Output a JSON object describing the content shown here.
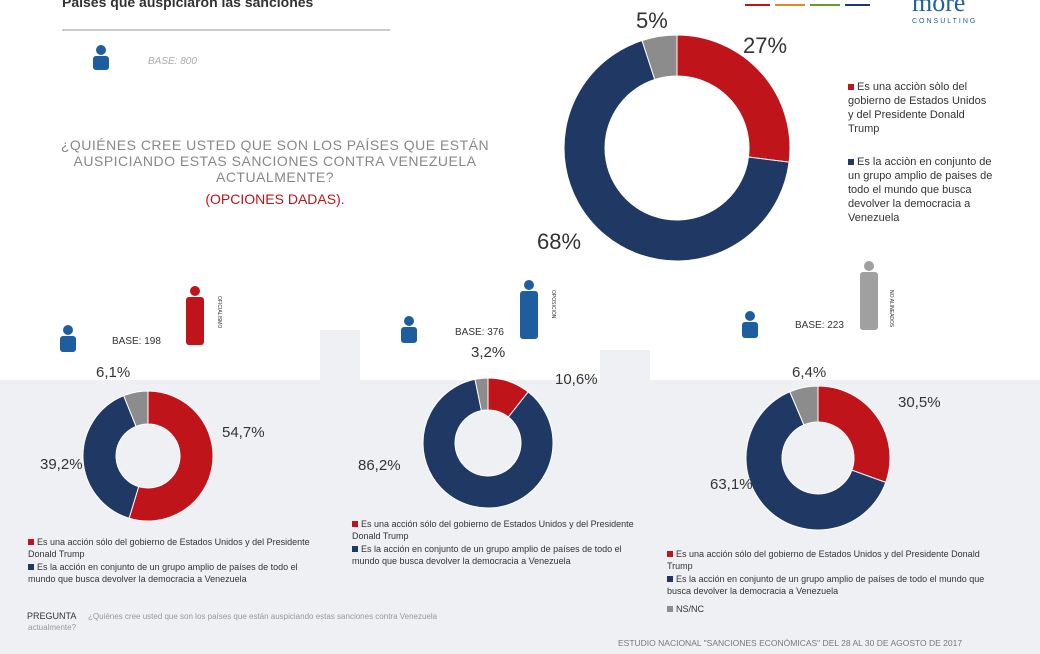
{
  "title": "Países que auspiciaron las sanciones",
  "logo": {
    "name": "more",
    "tagline": "CONSULTING"
  },
  "base": "BASE: 800",
  "question": "¿QUIÉNES CREE USTED QUE SON LOS PAÍSES QUE ESTÁN AUSPICIANDO ESTAS SANCIONES CONTRA VENEZUELA ACTUALMENTE?",
  "options_note": "(OPCIONES DADAS).",
  "footer_question_label": "PREGUNTA",
  "footer_question": "¿Quiénes cree usted que son los países que están auspiciando estas sanciones contra Venezuela actualmente?",
  "source": "ESTUDIO NACIONAL \"SANCIONES ECONÓMICAS\" DEL 28 AL 30 DE AGOSTO DE 2017",
  "chart_data": [
    {
      "type": "pie",
      "categories": [
        "Es una acciòn sòlo del gobierno de Estados Unidos y del Presidente Donald Trump",
        "Es la acciòn en conjunto de un grupo amplio de paises de todo el mundo que busca devolver la democracia a Venezuela",
        null
      ],
      "values": [
        27,
        68,
        5
      ],
      "value_labels": [
        "27%",
        "68%",
        "5%"
      ],
      "colors": [
        "#c0141b",
        "#1f3864",
        "#8c8c8c"
      ]
    },
    {
      "type": "pie",
      "group": "OFICIALISMO",
      "base": "BASE: 198",
      "categories": [
        "Es una acción sólo del gobierno de Estados Unidos y del Presidente Donald Trump",
        "Es la acción en conjunto de un grupo amplio de países de todo el mundo que busca devolver la democracia a Venezuela",
        null
      ],
      "values": [
        54.7,
        39.2,
        6.1
      ],
      "value_labels": [
        "54,7%",
        "39,2%",
        "6,1%"
      ],
      "colors": [
        "#c0141b",
        "#1f3864",
        "#8c8c8c"
      ]
    },
    {
      "type": "pie",
      "group": "OPOSICIÓN",
      "base": "BASE: 376",
      "categories": [
        "Es una acción sólo del gobierno de Estados Unidos y del Presidente Donald Trump",
        "Es la acción en conjunto de un grupo amplio de países de todo el mundo que busca devolver la democracia a Venezuela",
        null
      ],
      "values": [
        10.6,
        86.2,
        3.2
      ],
      "value_labels": [
        "10,6%",
        "86,2%",
        "3,2%"
      ],
      "colors": [
        "#c0141b",
        "#1f3864",
        "#8c8c8c"
      ]
    },
    {
      "type": "pie",
      "group": "NO ALINEADOS",
      "base": "BASE: 223",
      "categories": [
        "Es una acción sólo del gobierno de Estados Unidos y del Presidente Donald Trump",
        "Es la acción en conjunto de un grupo amplio de países de todo el mundo que busca devolver la democracia a Venezuela",
        "NS/NC"
      ],
      "values": [
        30.5,
        63.1,
        6.4
      ],
      "value_labels": [
        "30,5%",
        "63,1%",
        "6,4%"
      ],
      "colors": [
        "#c0141b",
        "#1f3864",
        "#8c8c8c"
      ]
    }
  ]
}
